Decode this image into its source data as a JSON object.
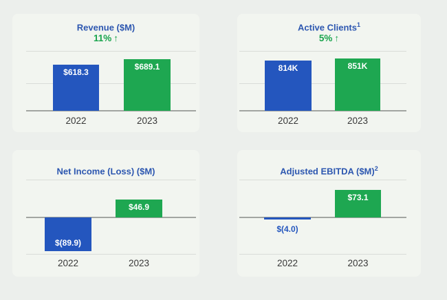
{
  "page": {
    "background": "#ecefec",
    "panel_background": "#f2f5f0"
  },
  "colors": {
    "bar_blue": "#2456be",
    "bar_green": "#1ea751",
    "title_text": "#2d57b0",
    "change_text": "#18a44c",
    "bar_value_text": "#ffffff",
    "negative_label_text": "#2456be",
    "year_text": "#383838",
    "gridline": "#d9dcd8",
    "zero_axis_line": "#a2a5a1"
  },
  "chart_data": [
    {
      "type": "bar",
      "title": "Revenue ($M)",
      "title_superscript": "",
      "change": {
        "label": "11%",
        "arrow": "↑"
      },
      "categories": [
        "2022",
        "2023"
      ],
      "values": [
        618.3,
        689.1
      ],
      "value_labels": [
        "$618.3",
        "$689.1"
      ],
      "series_colors": [
        "#2456be",
        "#1ea751"
      ],
      "ylim": [
        0,
        800
      ],
      "grid": true,
      "legend_position": "none"
    },
    {
      "type": "bar",
      "title": "Active Clients",
      "title_superscript": "1",
      "change": {
        "label": "5%",
        "arrow": "↑"
      },
      "categories": [
        "2022",
        "2023"
      ],
      "values": [
        814,
        851
      ],
      "value_labels": [
        "814K",
        "851K"
      ],
      "series_colors": [
        "#2456be",
        "#1ea751"
      ],
      "ylim": [
        0,
        970
      ],
      "grid": true,
      "legend_position": "none"
    },
    {
      "type": "bar",
      "title": "Net Income (Loss) ($M)",
      "title_superscript": "",
      "categories": [
        "2022",
        "2023"
      ],
      "values": [
        -89.9,
        46.9
      ],
      "value_labels": [
        "$(89.9)",
        "$46.9"
      ],
      "series_colors": [
        "#2456be",
        "#1ea751"
      ],
      "ylim": [
        -100,
        100
      ],
      "grid": true,
      "legend_position": "none"
    },
    {
      "type": "bar",
      "title": "Adjusted EBITDA ($M)",
      "title_superscript": "2",
      "categories": [
        "2022",
        "2023"
      ],
      "values": [
        -4.0,
        73.1
      ],
      "value_labels": [
        "$(4.0)",
        "$73.1"
      ],
      "series_colors": [
        "#2456be",
        "#1ea751"
      ],
      "ylim": [
        -100,
        100
      ],
      "grid": true,
      "legend_position": "none"
    }
  ]
}
